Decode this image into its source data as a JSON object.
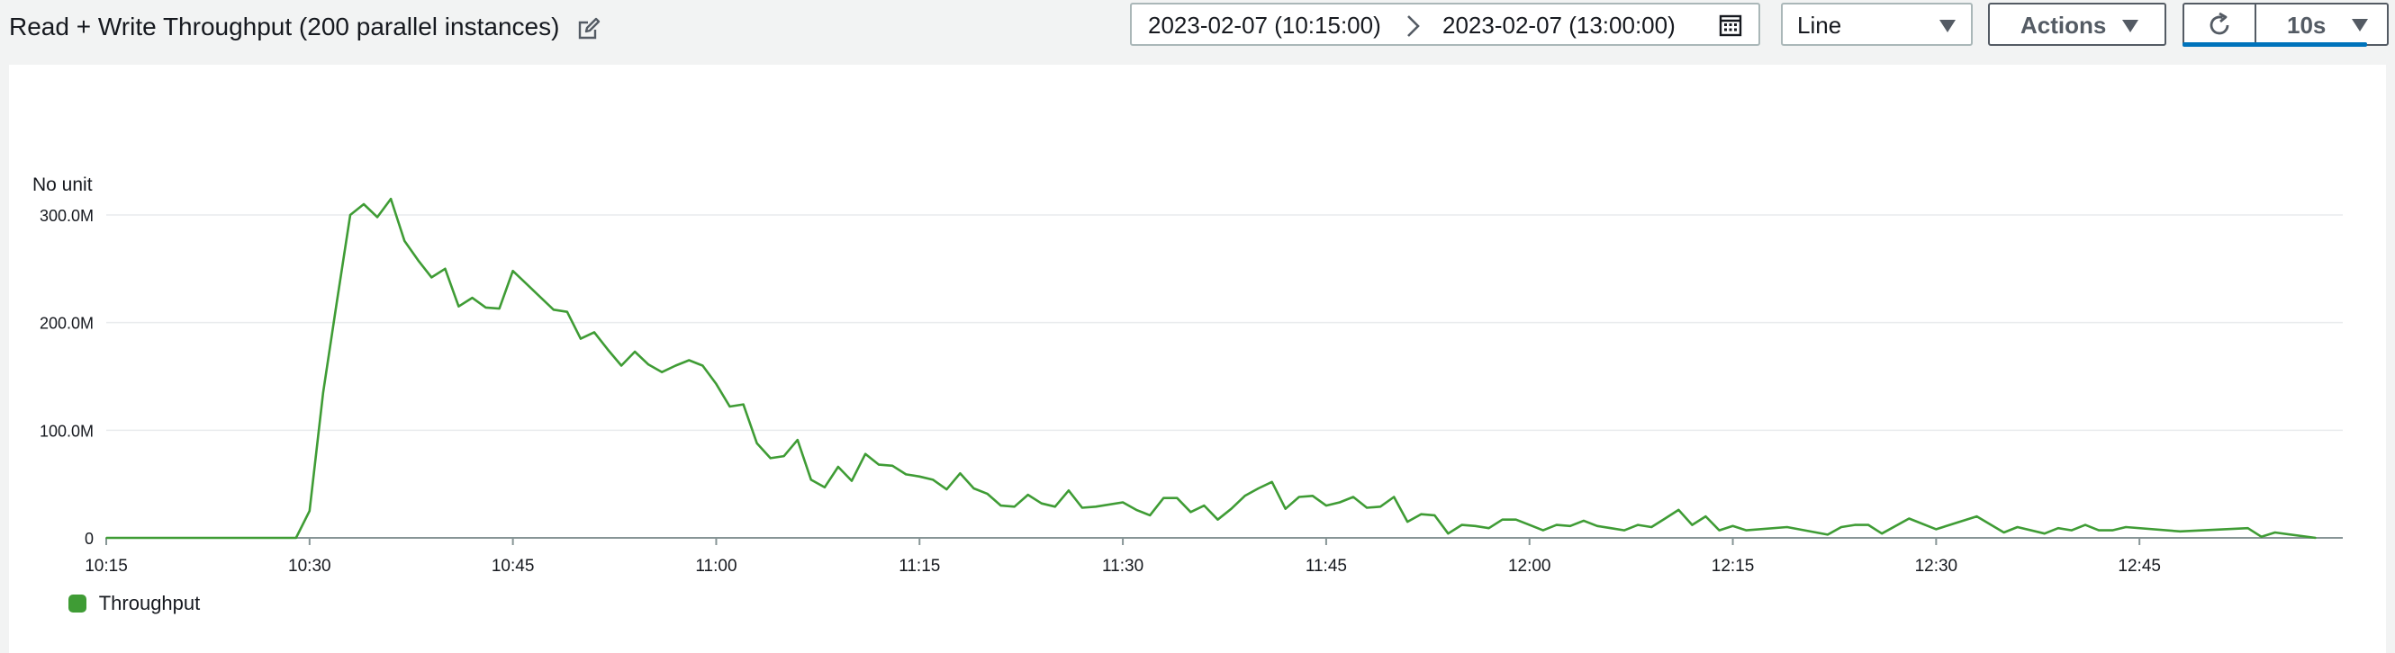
{
  "header": {
    "title": "Read + Write Throughput (200 parallel instances)",
    "edit_icon": "edit-icon",
    "date_start": "2023-02-07 (10:15:00)",
    "date_end": "2023-02-07 (13:00:00)",
    "calendar_icon": "calendar-icon",
    "chart_type": "Line",
    "actions_label": "Actions",
    "refresh_icon": "refresh-icon",
    "refresh_interval": "10s"
  },
  "colors": {
    "series": "#3f9c35",
    "accent": "#0073bb",
    "border": "#aab7b8",
    "button_border": "#545b64"
  },
  "chart_data": {
    "type": "line",
    "ylabel": "No unit",
    "ylim": [
      0,
      300
    ],
    "yticks": [
      {
        "v": 0,
        "label": "0"
      },
      {
        "v": 100,
        "label": "100.0M"
      },
      {
        "v": 200,
        "label": "200.0M"
      },
      {
        "v": 300,
        "label": "300.0M"
      }
    ],
    "xlim": [
      "10:15",
      "13:00"
    ],
    "xticks": [
      "10:15",
      "10:30",
      "10:45",
      "11:00",
      "11:15",
      "11:30",
      "11:45",
      "12:00",
      "12:15",
      "12:30",
      "12:45"
    ],
    "grid": true,
    "legend_position": "bottom-left",
    "series": [
      {
        "name": "Throughput",
        "color": "#3f9c35",
        "unit": "M",
        "points": [
          [
            "10:15",
            0
          ],
          [
            "10:29",
            0
          ],
          [
            "10:30",
            25
          ],
          [
            "10:31",
            135
          ],
          [
            "10:32",
            218
          ],
          [
            "10:33",
            300
          ],
          [
            "10:34",
            310
          ],
          [
            "10:35",
            298
          ],
          [
            "10:36",
            315
          ],
          [
            "10:37",
            276
          ],
          [
            "10:38",
            258
          ],
          [
            "10:39",
            242
          ],
          [
            "10:40",
            250
          ],
          [
            "10:41",
            215
          ],
          [
            "10:42",
            223
          ],
          [
            "10:43",
            214
          ],
          [
            "10:44",
            213
          ],
          [
            "10:45",
            248
          ],
          [
            "10:46",
            236
          ],
          [
            "10:47",
            224
          ],
          [
            "10:48",
            212
          ],
          [
            "10:49",
            210
          ],
          [
            "10:50",
            185
          ],
          [
            "10:51",
            191
          ],
          [
            "10:52",
            175
          ],
          [
            "10:53",
            160
          ],
          [
            "10:54",
            173
          ],
          [
            "10:55",
            161
          ],
          [
            "10:56",
            154
          ],
          [
            "10:57",
            160
          ],
          [
            "10:58",
            165
          ],
          [
            "10:59",
            160
          ],
          [
            "11:00",
            143
          ],
          [
            "11:01",
            122
          ],
          [
            "11:02",
            124
          ],
          [
            "11:03",
            88
          ],
          [
            "11:04",
            74
          ],
          [
            "11:05",
            76
          ],
          [
            "11:06",
            91
          ],
          [
            "11:07",
            54
          ],
          [
            "11:08",
            47
          ],
          [
            "11:09",
            66
          ],
          [
            "11:10",
            53
          ],
          [
            "11:11",
            78
          ],
          [
            "11:12",
            68
          ],
          [
            "11:13",
            67
          ],
          [
            "11:14",
            59
          ],
          [
            "11:15",
            57
          ],
          [
            "11:16",
            54
          ],
          [
            "11:17",
            45
          ],
          [
            "11:18",
            60
          ],
          [
            "11:19",
            46
          ],
          [
            "11:20",
            41
          ],
          [
            "11:21",
            30
          ],
          [
            "11:22",
            29
          ],
          [
            "11:23",
            40
          ],
          [
            "11:24",
            32
          ],
          [
            "11:25",
            29
          ],
          [
            "11:26",
            44
          ],
          [
            "11:27",
            28
          ],
          [
            "11:28",
            29
          ],
          [
            "11:30",
            33
          ],
          [
            "11:31",
            26
          ],
          [
            "11:32",
            21
          ],
          [
            "11:33",
            37
          ],
          [
            "11:34",
            37
          ],
          [
            "11:35",
            24
          ],
          [
            "11:36",
            30
          ],
          [
            "11:37",
            17
          ],
          [
            "11:38",
            27
          ],
          [
            "11:39",
            39
          ],
          [
            "11:40",
            46
          ],
          [
            "11:41",
            52
          ],
          [
            "11:42",
            27
          ],
          [
            "11:43",
            38
          ],
          [
            "11:44",
            39
          ],
          [
            "11:45",
            30
          ],
          [
            "11:46",
            33
          ],
          [
            "11:47",
            38
          ],
          [
            "11:48",
            28
          ],
          [
            "11:49",
            29
          ],
          [
            "11:50",
            38
          ],
          [
            "11:51",
            15
          ],
          [
            "11:52",
            22
          ],
          [
            "11:53",
            21
          ],
          [
            "11:54",
            4
          ],
          [
            "11:55",
            12
          ],
          [
            "11:56",
            11
          ],
          [
            "11:57",
            9
          ],
          [
            "11:58",
            17
          ],
          [
            "11:59",
            17
          ],
          [
            "12:00",
            12
          ],
          [
            "12:01",
            7
          ],
          [
            "12:02",
            12
          ],
          [
            "12:03",
            11
          ],
          [
            "12:04",
            16
          ],
          [
            "12:05",
            11
          ],
          [
            "12:06",
            9
          ],
          [
            "12:07",
            7
          ],
          [
            "12:08",
            12
          ],
          [
            "12:09",
            10
          ],
          [
            "12:10",
            18
          ],
          [
            "12:11",
            26
          ],
          [
            "12:12",
            12
          ],
          [
            "12:13",
            20
          ],
          [
            "12:14",
            7
          ],
          [
            "12:15",
            11
          ],
          [
            "12:16",
            7
          ],
          [
            "12:19",
            10
          ],
          [
            "12:22",
            3
          ],
          [
            "12:23",
            10
          ],
          [
            "12:24",
            12
          ],
          [
            "12:25",
            12
          ],
          [
            "12:26",
            4
          ],
          [
            "12:28",
            18
          ],
          [
            "12:30",
            8
          ],
          [
            "12:33",
            20
          ],
          [
            "12:35",
            5
          ],
          [
            "12:36",
            10
          ],
          [
            "12:38",
            4
          ],
          [
            "12:39",
            9
          ],
          [
            "12:40",
            7
          ],
          [
            "12:41",
            12
          ],
          [
            "12:42",
            7
          ],
          [
            "12:43",
            7
          ],
          [
            "12:44",
            10
          ],
          [
            "12:48",
            6
          ],
          [
            "12:53",
            9
          ],
          [
            "12:54",
            1
          ],
          [
            "12:55",
            5
          ],
          [
            "12:58",
            0
          ]
        ]
      }
    ]
  }
}
